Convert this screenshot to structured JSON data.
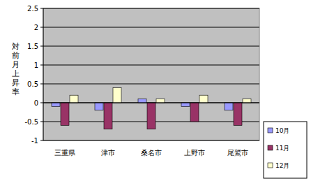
{
  "chart_data": {
    "type": "bar",
    "y_label": "対前月上昇率",
    "categories": [
      "三重県",
      "津市",
      "桑名市",
      "上野市",
      "尾鷲市"
    ],
    "series": [
      {
        "name": "10月",
        "color": "#9999FF",
        "values": [
          -0.1,
          -0.2,
          0.1,
          -0.1,
          -0.2
        ]
      },
      {
        "name": "11月",
        "color": "#993366",
        "values": [
          -0.6,
          -0.7,
          -0.7,
          -0.5,
          -0.6
        ]
      },
      {
        "name": "12月",
        "color": "#FFFFCC",
        "values": [
          0.2,
          0.4,
          0.1,
          0.2,
          0.1
        ]
      }
    ],
    "ylim": [
      -1,
      2.5
    ],
    "yticks": [
      -1,
      -0.5,
      0,
      0.5,
      1,
      1.5,
      2,
      2.5
    ],
    "grid": true,
    "legend": "lower right"
  }
}
